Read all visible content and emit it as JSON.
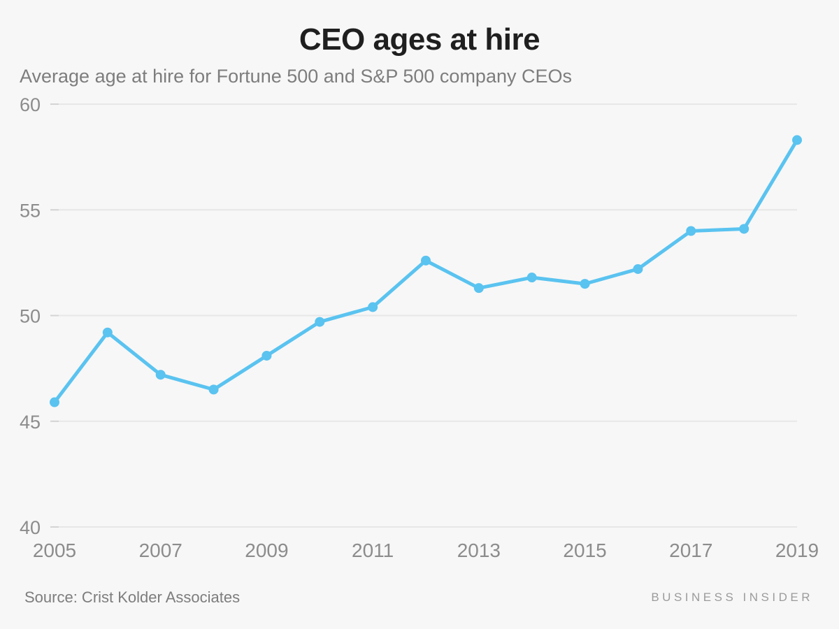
{
  "header": {
    "title": "CEO ages at hire",
    "subtitle": "Average age at hire for Fortune 500 and S&P 500 company CEOs"
  },
  "footer": {
    "source": "Source: Crist Kolder Associates",
    "brand": "BUSINESS INSIDER"
  },
  "colors": {
    "background": "#f7f7f7",
    "line": "#5ac3f0",
    "marker": "#5ac3f0",
    "gridline": "#e7e7e7",
    "tick": "#d4d4d4",
    "axis_text": "#8c8c8c",
    "title_text": "#1f1f1f",
    "subtitle_text": "#7d7d7d",
    "source_text": "#7d7d7d",
    "brand_text": "#9b9b9b"
  },
  "chart_data": {
    "type": "line",
    "title": "CEO ages at hire",
    "subtitle": "Average age at hire for Fortune 500 and S&P 500 company CEOs",
    "x": [
      2005,
      2006,
      2007,
      2008,
      2009,
      2010,
      2011,
      2012,
      2013,
      2014,
      2015,
      2016,
      2017,
      2018,
      2019
    ],
    "series": [
      {
        "name": "Average age at hire",
        "values": [
          45.9,
          49.2,
          47.2,
          46.5,
          48.1,
          49.7,
          50.4,
          52.6,
          51.3,
          51.8,
          51.5,
          52.2,
          54.0,
          54.1,
          58.3
        ]
      }
    ],
    "xlabel": "",
    "ylabel": "",
    "ylim": [
      40,
      60
    ],
    "yticks": [
      40,
      45,
      50,
      55,
      60
    ],
    "xticks": [
      2005,
      2007,
      2009,
      2011,
      2013,
      2015,
      2017,
      2019
    ],
    "grid": "horizontal-only",
    "legend": "none",
    "marker": "circle",
    "source": "Crist Kolder Associates"
  }
}
